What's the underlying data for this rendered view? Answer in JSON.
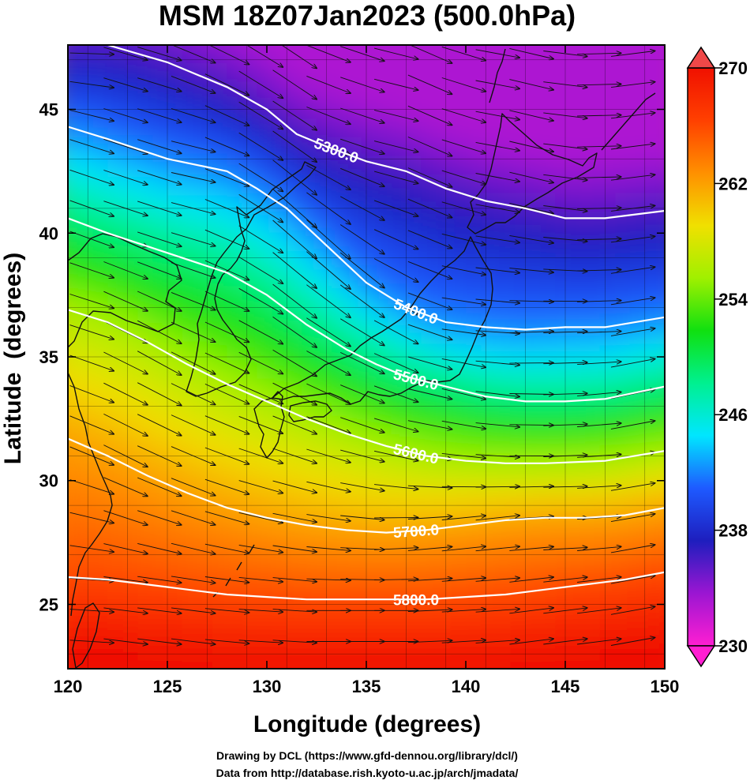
{
  "chart_data": {
    "type": "heatmap",
    "title": "MSM 18Z07Jan2023 (500.0hPa)",
    "xlabel": "Longitude (degrees)",
    "ylabel": "Latitude  (degrees)",
    "xlim": [
      120,
      150
    ],
    "ylim": [
      22.4,
      47.6
    ],
    "x_ticks": [
      120,
      125,
      130,
      135,
      140,
      145,
      150
    ],
    "y_ticks": [
      25,
      30,
      35,
      40,
      45
    ],
    "colorbar": {
      "range": [
        230,
        270
      ],
      "ticks": [
        230,
        238,
        246,
        254,
        262,
        270
      ],
      "extend": "both",
      "colors": [
        "#ff1ed2",
        "#9b16d2",
        "#1e1ebe",
        "#1e5aff",
        "#00e6ff",
        "#00f090",
        "#10e010",
        "#a0f000",
        "#f0e000",
        "#ff9000",
        "#ff4000",
        "#f01000"
      ]
    },
    "contours": [
      {
        "label": "5300.0",
        "points": [
          [
            122.0,
            47.6
          ],
          [
            125,
            46.9
          ],
          [
            128,
            45.9
          ],
          [
            130,
            45.0
          ],
          [
            131.5,
            44.0
          ],
          [
            133,
            43.5
          ],
          [
            135,
            42.9
          ],
          [
            137,
            42.5
          ],
          [
            139,
            41.8
          ],
          [
            141,
            41.3
          ],
          [
            143,
            41.0
          ],
          [
            145,
            40.6
          ],
          [
            147,
            40.6
          ],
          [
            150,
            40.9
          ]
        ]
      },
      {
        "label": "5400.0",
        "points": [
          [
            120,
            44.3
          ],
          [
            122,
            43.8
          ],
          [
            125,
            43.0
          ],
          [
            128,
            42.5
          ],
          [
            129.5,
            41.8
          ],
          [
            131,
            41.0
          ],
          [
            133,
            39.5
          ],
          [
            135,
            38.0
          ],
          [
            137,
            37.0
          ],
          [
            139,
            36.4
          ],
          [
            141,
            36.2
          ],
          [
            143,
            36.1
          ],
          [
            145,
            36.2
          ],
          [
            147,
            36.2
          ],
          [
            150,
            36.6
          ]
        ]
      },
      {
        "label": "5500.0",
        "points": [
          [
            120,
            40.6
          ],
          [
            122,
            40.0
          ],
          [
            125,
            39.2
          ],
          [
            128,
            38.4
          ],
          [
            130,
            37.5
          ],
          [
            132,
            36.3
          ],
          [
            134,
            35.3
          ],
          [
            135.5,
            34.7
          ],
          [
            137,
            34.2
          ],
          [
            139,
            33.8
          ],
          [
            141,
            33.4
          ],
          [
            143,
            33.2
          ],
          [
            145,
            33.2
          ],
          [
            147,
            33.3
          ],
          [
            150,
            33.8
          ]
        ]
      },
      {
        "label": "5600.0",
        "points": [
          [
            120,
            36.9
          ],
          [
            122,
            36.4
          ],
          [
            124,
            35.6
          ],
          [
            126,
            34.7
          ],
          [
            128,
            33.9
          ],
          [
            130,
            33.2
          ],
          [
            132,
            32.5
          ],
          [
            134,
            31.9
          ],
          [
            136,
            31.4
          ],
          [
            138,
            31.0
          ],
          [
            140,
            30.8
          ],
          [
            142,
            30.7
          ],
          [
            144,
            30.7
          ],
          [
            147,
            30.8
          ],
          [
            150,
            31.2
          ]
        ]
      },
      {
        "label": "5700.0",
        "points": [
          [
            120,
            31.7
          ],
          [
            122,
            31.0
          ],
          [
            124,
            30.2
          ],
          [
            126,
            29.5
          ],
          [
            128,
            28.9
          ],
          [
            130,
            28.5
          ],
          [
            132,
            28.2
          ],
          [
            134,
            28.0
          ],
          [
            136,
            27.9
          ],
          [
            138,
            28.0
          ],
          [
            140,
            28.2
          ],
          [
            142,
            28.4
          ],
          [
            144,
            28.5
          ],
          [
            146,
            28.5
          ],
          [
            148,
            28.6
          ],
          [
            150,
            28.9
          ]
        ]
      },
      {
        "label": "5800.0",
        "points": [
          [
            120,
            26.1
          ],
          [
            122,
            26.0
          ],
          [
            124,
            25.8
          ],
          [
            126,
            25.6
          ],
          [
            128,
            25.4
          ],
          [
            130,
            25.3
          ],
          [
            132,
            25.2
          ],
          [
            134,
            25.2
          ],
          [
            136,
            25.2
          ],
          [
            138,
            25.2
          ],
          [
            140,
            25.3
          ],
          [
            142,
            25.4
          ],
          [
            144,
            25.6
          ],
          [
            146,
            25.8
          ],
          [
            148,
            26.0
          ],
          [
            150,
            26.3
          ]
        ]
      }
    ]
  },
  "credits": {
    "line1": "Drawing by DCL (https://www.gfd-dennou.org/library/dcl/)",
    "line2": "Data from http://database.rish.kyoto-u.ac.jp/arch/jmadata/"
  }
}
